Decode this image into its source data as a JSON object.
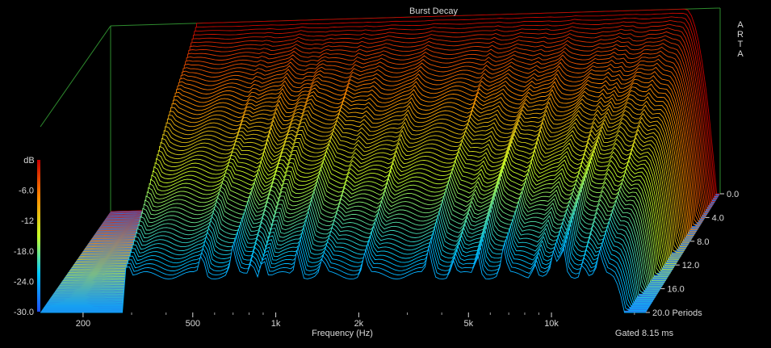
{
  "chart_data": {
    "type": "waterfall-3d",
    "title": "Burst Decay",
    "brand": "ARTA",
    "xlabel": "Frequency (Hz)",
    "x_scale": "log",
    "xlim": [
      140,
      22000
    ],
    "x_ticks": [
      {
        "value": 200,
        "label": "200"
      },
      {
        "value": 500,
        "label": "500"
      },
      {
        "value": 1000,
        "label": "1k"
      },
      {
        "value": 2000,
        "label": "2k"
      },
      {
        "value": 5000,
        "label": "5k"
      },
      {
        "value": 10000,
        "label": "10k"
      }
    ],
    "x_minor_ticks": [
      300,
      400,
      600,
      700,
      800,
      900,
      3000,
      4000,
      6000,
      7000,
      8000,
      9000,
      20000
    ],
    "zlabel": "dB",
    "zlim": [
      -30,
      0
    ],
    "z_ticks": [
      {
        "value": -6,
        "label": "-6.0"
      },
      {
        "value": -12,
        "label": "-12"
      },
      {
        "value": -18,
        "label": "-18.0"
      },
      {
        "value": -24,
        "label": "-24.0"
      },
      {
        "value": -30,
        "label": "-30.0"
      }
    ],
    "time_unit": "Periods",
    "time_range": [
      0,
      20
    ],
    "time_ticks": [
      {
        "value": 0,
        "label": "0.0"
      },
      {
        "value": 4,
        "label": "4.0"
      },
      {
        "value": 8,
        "label": "8.0"
      },
      {
        "value": 12,
        "label": "12.0"
      },
      {
        "value": 16,
        "label": "16.0"
      },
      {
        "value": 20,
        "label": "20.0 Periods"
      }
    ],
    "footer_note": "Gated 8.15 ms",
    "slice_count": 64,
    "response_start_hz": 280,
    "high_rolloff_hz": 16500,
    "resonances_hz": [
      290,
      540,
      700,
      820,
      900,
      1200,
      1480,
      2100,
      3600,
      4400,
      5400,
      6700,
      8700,
      10200,
      11000,
      13000,
      15000
    ],
    "colors": {
      "background": "#000000",
      "frame": "#2e8b2e",
      "floor": "#2a78e6",
      "text": "#d8d8d8",
      "scale": [
        "#1e50ff",
        "#00c8ff",
        "#c8ff28",
        "#ff8c00",
        "#c80000"
      ]
    }
  }
}
